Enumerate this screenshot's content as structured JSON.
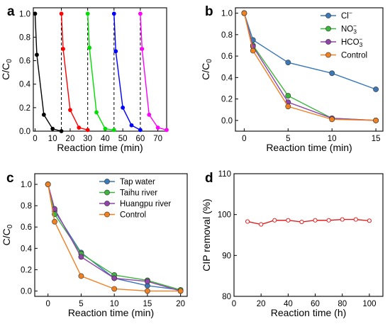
{
  "chart_data": [
    {
      "panel": "a",
      "type": "line",
      "xlabel": "Reaction time (min)",
      "ylabel": "C/C0",
      "ylabel_main": "C/C",
      "ylabel_sub": "0",
      "xlim": [
        -1,
        75
      ],
      "ylim": [
        0,
        1.05
      ],
      "xticks": [
        "0",
        "10",
        "20",
        "30",
        "40",
        "50",
        "60",
        "70"
      ],
      "yticks": [
        "0.0",
        "0.2",
        "0.4",
        "0.6",
        "0.8",
        "1.0"
      ],
      "cycle_dividers": [
        15,
        30,
        45,
        60
      ],
      "colors": [
        "#000000",
        "#ff0000",
        "#00dd00",
        "#0000ff",
        "#ff00ff"
      ],
      "series": [
        {
          "x": [
            0,
            1,
            5,
            10,
            15
          ],
          "values": [
            1.0,
            0.65,
            0.14,
            0.02,
            0.0
          ]
        },
        {
          "x": [
            15,
            16,
            20,
            25,
            30
          ],
          "values": [
            1.0,
            0.7,
            0.18,
            0.03,
            0.01
          ]
        },
        {
          "x": [
            30,
            31,
            35,
            40,
            45
          ],
          "values": [
            1.0,
            0.71,
            0.16,
            0.02,
            0.01
          ]
        },
        {
          "x": [
            45,
            46,
            50,
            55,
            60
          ],
          "values": [
            1.0,
            0.68,
            0.2,
            0.05,
            0.01
          ]
        },
        {
          "x": [
            60,
            61,
            65,
            70,
            75
          ],
          "values": [
            1.0,
            0.7,
            0.14,
            0.03,
            0.01
          ]
        }
      ]
    },
    {
      "panel": "b",
      "type": "line",
      "xlabel": "Reaction time (min)",
      "ylabel": "C/C0",
      "ylabel_main": "C/C",
      "ylabel_sub": "0",
      "xlim": [
        -1,
        15.8
      ],
      "ylim": [
        -0.1,
        1.05
      ],
      "xticks": [
        0,
        5,
        10,
        15
      ],
      "yticks": [
        "0.0",
        "0.2",
        "0.4",
        "0.6",
        "0.8",
        "1.0"
      ],
      "legend_position": "top-right",
      "series": [
        {
          "name": "Cl",
          "sup": "−",
          "color": "#3a78b8",
          "x": [
            0,
            1,
            5,
            10,
            15
          ],
          "values": [
            1.0,
            0.75,
            0.54,
            0.44,
            0.29
          ]
        },
        {
          "name": "NO",
          "sub": "3",
          "sup": "−",
          "color": "#3db43d",
          "x": [
            0,
            1,
            5,
            10,
            15
          ],
          "values": [
            1.0,
            0.7,
            0.23,
            0.02,
            0.0
          ]
        },
        {
          "name": "HCO",
          "sub": "3",
          "sup": "−",
          "color": "#8f44a8",
          "x": [
            0,
            1,
            5,
            10,
            15
          ],
          "values": [
            1.0,
            0.69,
            0.17,
            0.02,
            0.0
          ]
        },
        {
          "name": "Control",
          "color": "#f08020",
          "x": [
            0,
            1,
            5,
            10,
            15
          ],
          "values": [
            1.0,
            0.65,
            0.13,
            0.01,
            0.0
          ]
        }
      ]
    },
    {
      "panel": "c",
      "type": "line",
      "xlabel": "Reaction time (min)",
      "ylabel": "C/C0",
      "ylabel_main": "C/C",
      "ylabel_sub": "0",
      "xlim": [
        -2,
        21
      ],
      "ylim": [
        -0.05,
        1.1
      ],
      "xticks": [
        0,
        5,
        10,
        15,
        20
      ],
      "yticks": [
        "0.0",
        "0.2",
        "0.4",
        "0.6",
        "0.8",
        "1.0"
      ],
      "legend_position": "top-right",
      "series": [
        {
          "name": "Tap water",
          "color": "#3a78b8",
          "x": [
            0,
            1,
            5,
            10,
            15,
            20
          ],
          "values": [
            1.0,
            0.75,
            0.36,
            0.12,
            0.05,
            0.01
          ]
        },
        {
          "name": "Taihu river",
          "color": "#3db43d",
          "x": [
            0,
            1,
            5,
            10,
            15,
            20
          ],
          "values": [
            1.0,
            0.72,
            0.35,
            0.15,
            0.1,
            0.01
          ]
        },
        {
          "name": "Huangpu river",
          "color": "#8f44a8",
          "x": [
            0,
            1,
            5,
            10,
            15,
            20
          ],
          "values": [
            1.0,
            0.77,
            0.32,
            0.12,
            0.09,
            0.0
          ]
        },
        {
          "name": "Control",
          "color": "#f08020",
          "x": [
            0,
            1,
            5,
            10,
            15,
            20
          ],
          "values": [
            1.0,
            0.65,
            0.14,
            0.02,
            0.0,
            0.0
          ]
        }
      ]
    },
    {
      "panel": "d",
      "type": "line",
      "xlabel": "Reaction time (h)",
      "ylabel": "CIP removal (%)",
      "xlim": [
        0,
        110
      ],
      "ylim": [
        80,
        110
      ],
      "xticks": [
        0,
        20,
        40,
        60,
        80,
        100
      ],
      "yticks": [
        80,
        90,
        100,
        110
      ],
      "color": "#e02020",
      "series": [
        {
          "x": [
            10,
            20,
            30,
            40,
            50,
            60,
            70,
            80,
            90,
            100
          ],
          "values": [
            98.3,
            97.6,
            98.6,
            98.6,
            98.2,
            98.6,
            98.6,
            98.8,
            98.8,
            98.5
          ]
        }
      ]
    }
  ]
}
